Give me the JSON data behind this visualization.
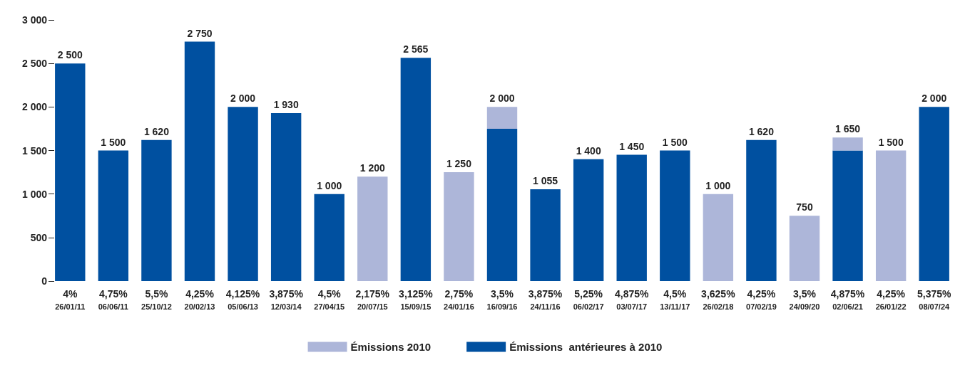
{
  "chart_data": {
    "type": "bar",
    "stacked": true,
    "categories": [
      "4%\n26/01/11",
      "4,75%\n06/06/11",
      "5,5%\n25/10/12",
      "4,25%\n20/02/13",
      "4,125%\n05/06/13",
      "3,875%\n12/03/14",
      "4,5%\n27/04/15",
      "2,175%\n20/07/15",
      "3,125%\n15/09/15",
      "2,75%\n24/01/16",
      "3,5%\n16/09/16",
      "3,875%\n24/11/16",
      "5,25%\n06/02/17",
      "4,875%\n03/07/17",
      "4,5%\n13/11/17",
      "3,625%\n26/02/18",
      "4,25%\n07/02/19",
      "3,5%\n24/09/20",
      "4,875%\n02/06/21",
      "4,25%\n26/01/22",
      "5,375%\n08/07/24"
    ],
    "series": [
      {
        "name": "Émissions  antérieures à 2010",
        "color": "#0050a0",
        "values": [
          2500,
          1500,
          1620,
          2750,
          2000,
          1930,
          1000,
          null,
          2565,
          null,
          1750,
          1055,
          1400,
          1450,
          1500,
          null,
          1620,
          null,
          1500,
          null,
          2000
        ]
      },
      {
        "name": "Émissions 2010",
        "color": "#adb6d9",
        "values": [
          null,
          null,
          null,
          null,
          null,
          null,
          null,
          1200,
          null,
          1250,
          250,
          null,
          null,
          null,
          null,
          1000,
          null,
          750,
          150,
          1500,
          null
        ]
      }
    ],
    "totals": [
      "2 500",
      "1 500",
      "1 620",
      "2 750",
      "2 000",
      "1 930",
      "1 000",
      "1 200",
      "2 565",
      "1 250",
      "2 000",
      "1 055",
      "1 400",
      "1 450",
      "1 500",
      "1 000",
      "1 620",
      "750",
      "1 650",
      "1 500",
      "2 000"
    ],
    "ylim": [
      0,
      3000
    ],
    "yticks": [
      0,
      500,
      {
        "value": 1000,
        "label": "1 000"
      },
      {
        "value": 1500,
        "label": "1 500"
      },
      {
        "value": 2000,
        "label": "2 000"
      },
      {
        "value": 2500,
        "label": "2 500"
      },
      {
        "value": 3000,
        "label": "3 000"
      }
    ],
    "grid": false,
    "legend": "bottom"
  }
}
